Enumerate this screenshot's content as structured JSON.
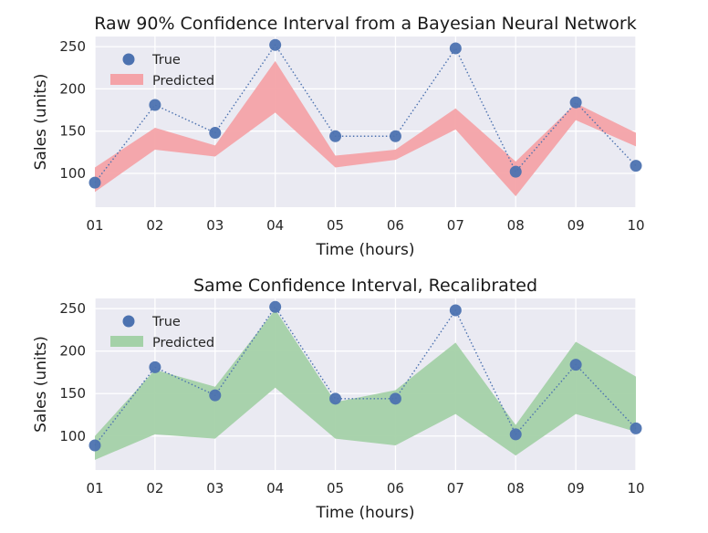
{
  "chart_data": [
    {
      "type": "line",
      "title": "Raw 90% Confidence Interval from a Bayesian Neural Network",
      "xlabel": "Time (hours)",
      "ylabel": "Sales (units)",
      "categories": [
        "01",
        "02",
        "03",
        "04",
        "05",
        "06",
        "07",
        "08",
        "09",
        "10"
      ],
      "ylim": [
        60,
        262
      ],
      "yticks": [
        "100",
        "150",
        "200",
        "250"
      ],
      "grid": true,
      "legend_position": "top-left",
      "band_color": "#f4a3a8",
      "point_color": "#4c72b0",
      "series": [
        {
          "name": "True",
          "values": [
            89,
            181,
            148,
            252,
            144,
            144,
            248,
            102,
            184,
            109
          ]
        },
        {
          "name": "Predicted",
          "lower": [
            78,
            128,
            120,
            172,
            107,
            116,
            152,
            73,
            163,
            132
          ],
          "upper": [
            107,
            154,
            133,
            233,
            121,
            128,
            177,
            114,
            183,
            148
          ]
        }
      ]
    },
    {
      "type": "line",
      "title": "Same Confidence Interval, Recalibrated",
      "xlabel": "Time (hours)",
      "ylabel": "Sales (units)",
      "categories": [
        "01",
        "02",
        "03",
        "04",
        "05",
        "06",
        "07",
        "08",
        "09",
        "10"
      ],
      "ylim": [
        60,
        262
      ],
      "yticks": [
        "100",
        "150",
        "200",
        "250"
      ],
      "grid": true,
      "legend_position": "top-left",
      "band_color": "#a4d1a8",
      "point_color": "#4c72b0",
      "series": [
        {
          "name": "True",
          "values": [
            89,
            181,
            148,
            252,
            144,
            144,
            248,
            102,
            184,
            109
          ]
        },
        {
          "name": "Predicted",
          "lower": [
            72,
            102,
            97,
            157,
            97,
            89,
            126,
            77,
            126,
            105
          ],
          "upper": [
            100,
            178,
            158,
            249,
            140,
            154,
            210,
            113,
            211,
            170
          ]
        }
      ]
    }
  ]
}
